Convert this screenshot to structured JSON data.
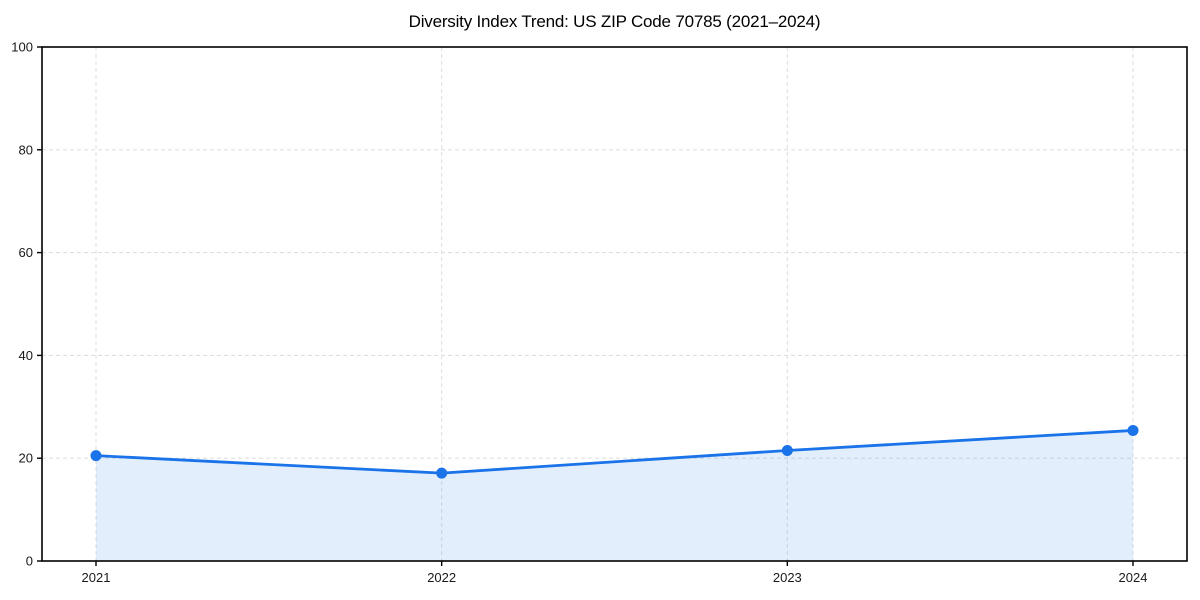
{
  "figure": {
    "background": "#ffffff"
  },
  "chart_data": {
    "type": "area",
    "title": "Diversity Index Trend: US ZIP Code 70785 (2021–2024)",
    "categories": [
      "2021",
      "2022",
      "2023",
      "2024"
    ],
    "series": [
      {
        "name": "Diversity Index",
        "values": [
          20.5,
          17.1,
          21.5,
          25.4
        ]
      }
    ],
    "xlabel": "",
    "ylabel": "",
    "ylim": [
      0,
      100
    ],
    "yticks": [
      0,
      20,
      40,
      60,
      80,
      100
    ],
    "grid": "dashed",
    "legend_position": "none",
    "colors": {
      "line": "#1a73e8",
      "marker": "#1a73e8",
      "area_fill": "rgba(26,115,232,0.12)",
      "gridline": "#e0e0e0",
      "axis": "#000000",
      "tick_label": "#1a1a1a",
      "title": "#000000"
    }
  }
}
